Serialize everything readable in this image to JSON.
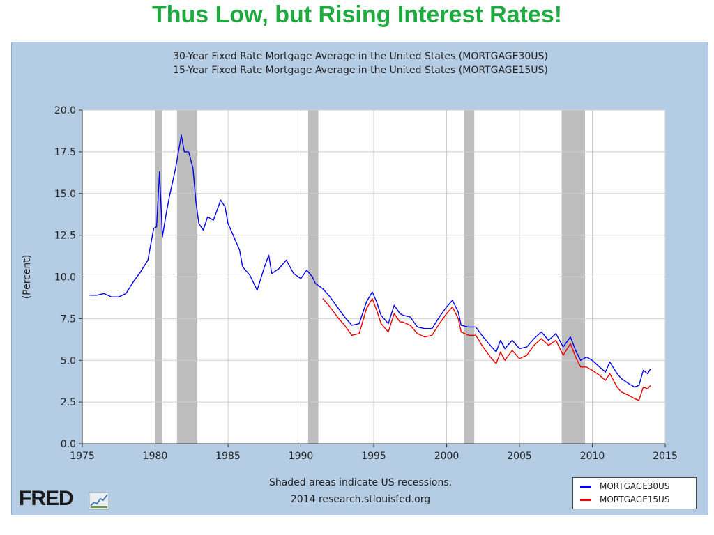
{
  "slide_title": "Thus Low, but Rising Interest Rates!",
  "chart_data": {
    "type": "line",
    "title_lines": [
      "30-Year Fixed Rate Mortgage Average in the United States (MORTGAGE30US)",
      "15-Year Fixed Rate Mortgage Average in the United States (MORTGAGE15US)"
    ],
    "ylabel": "(Percent)",
    "xlabel": "",
    "xlim": [
      1975,
      2015
    ],
    "ylim": [
      0,
      20
    ],
    "x_ticks": [
      "1975",
      "1980",
      "1985",
      "1990",
      "1995",
      "2000",
      "2005",
      "2010",
      "2015"
    ],
    "y_ticks": [
      "0.0",
      "2.5",
      "5.0",
      "7.5",
      "10.0",
      "12.5",
      "15.0",
      "17.5",
      "20.0"
    ],
    "grid": true,
    "legend_position": "bottom-right",
    "recessions": [
      [
        1980.0,
        1980.5
      ],
      [
        1981.5,
        1982.9
      ],
      [
        1990.5,
        1991.2
      ],
      [
        2001.2,
        2001.9
      ],
      [
        2007.9,
        2009.5
      ]
    ],
    "series": [
      {
        "name": "MORTGAGE30US",
        "color": "#0000ee",
        "points": [
          [
            1975.5,
            8.9
          ],
          [
            1976.0,
            8.9
          ],
          [
            1976.5,
            9.0
          ],
          [
            1977.0,
            8.8
          ],
          [
            1977.5,
            8.8
          ],
          [
            1978.0,
            9.0
          ],
          [
            1978.5,
            9.7
          ],
          [
            1979.0,
            10.3
          ],
          [
            1979.5,
            11.0
          ],
          [
            1979.9,
            12.9
          ],
          [
            1980.1,
            13.0
          ],
          [
            1980.3,
            16.3
          ],
          [
            1980.5,
            12.4
          ],
          [
            1980.8,
            14.0
          ],
          [
            1981.0,
            14.9
          ],
          [
            1981.4,
            16.5
          ],
          [
            1981.8,
            18.5
          ],
          [
            1982.0,
            17.5
          ],
          [
            1982.3,
            17.5
          ],
          [
            1982.6,
            16.5
          ],
          [
            1982.8,
            14.5
          ],
          [
            1983.0,
            13.2
          ],
          [
            1983.3,
            12.8
          ],
          [
            1983.6,
            13.6
          ],
          [
            1984.0,
            13.4
          ],
          [
            1984.5,
            14.6
          ],
          [
            1984.8,
            14.2
          ],
          [
            1985.0,
            13.2
          ],
          [
            1985.5,
            12.2
          ],
          [
            1985.8,
            11.6
          ],
          [
            1986.0,
            10.6
          ],
          [
            1986.5,
            10.1
          ],
          [
            1987.0,
            9.2
          ],
          [
            1987.5,
            10.6
          ],
          [
            1987.8,
            11.3
          ],
          [
            1988.0,
            10.2
          ],
          [
            1988.5,
            10.5
          ],
          [
            1989.0,
            11.0
          ],
          [
            1989.5,
            10.2
          ],
          [
            1990.0,
            9.9
          ],
          [
            1990.4,
            10.4
          ],
          [
            1990.8,
            10.0
          ],
          [
            1991.0,
            9.6
          ],
          [
            1991.5,
            9.3
          ],
          [
            1992.0,
            8.8
          ],
          [
            1992.5,
            8.2
          ],
          [
            1993.0,
            7.6
          ],
          [
            1993.5,
            7.1
          ],
          [
            1994.0,
            7.2
          ],
          [
            1994.5,
            8.5
          ],
          [
            1994.9,
            9.1
          ],
          [
            1995.2,
            8.5
          ],
          [
            1995.5,
            7.7
          ],
          [
            1996.0,
            7.2
          ],
          [
            1996.4,
            8.3
          ],
          [
            1996.8,
            7.8
          ],
          [
            1997.0,
            7.7
          ],
          [
            1997.5,
            7.6
          ],
          [
            1998.0,
            7.0
          ],
          [
            1998.5,
            6.9
          ],
          [
            1999.0,
            6.9
          ],
          [
            1999.5,
            7.6
          ],
          [
            2000.0,
            8.2
          ],
          [
            2000.4,
            8.6
          ],
          [
            2000.8,
            7.9
          ],
          [
            2001.0,
            7.1
          ],
          [
            2001.5,
            7.0
          ],
          [
            2002.0,
            7.0
          ],
          [
            2002.5,
            6.4
          ],
          [
            2003.0,
            5.9
          ],
          [
            2003.4,
            5.5
          ],
          [
            2003.7,
            6.2
          ],
          [
            2004.0,
            5.7
          ],
          [
            2004.5,
            6.2
          ],
          [
            2005.0,
            5.7
          ],
          [
            2005.5,
            5.8
          ],
          [
            2006.0,
            6.3
          ],
          [
            2006.5,
            6.7
          ],
          [
            2007.0,
            6.2
          ],
          [
            2007.5,
            6.6
          ],
          [
            2008.0,
            5.8
          ],
          [
            2008.5,
            6.4
          ],
          [
            2008.9,
            5.5
          ],
          [
            2009.2,
            5.0
          ],
          [
            2009.6,
            5.2
          ],
          [
            2010.0,
            5.0
          ],
          [
            2010.5,
            4.6
          ],
          [
            2010.9,
            4.3
          ],
          [
            2011.2,
            4.9
          ],
          [
            2011.7,
            4.2
          ],
          [
            2012.0,
            3.9
          ],
          [
            2012.5,
            3.6
          ],
          [
            2012.9,
            3.4
          ],
          [
            2013.2,
            3.5
          ],
          [
            2013.5,
            4.4
          ],
          [
            2013.8,
            4.2
          ],
          [
            2014.0,
            4.5
          ]
        ]
      },
      {
        "name": "MORTGAGE15US",
        "color": "#ee0000",
        "points": [
          [
            1991.5,
            8.7
          ],
          [
            1992.0,
            8.2
          ],
          [
            1992.5,
            7.6
          ],
          [
            1993.0,
            7.1
          ],
          [
            1993.5,
            6.5
          ],
          [
            1994.0,
            6.6
          ],
          [
            1994.5,
            8.1
          ],
          [
            1994.9,
            8.7
          ],
          [
            1995.2,
            8.0
          ],
          [
            1995.5,
            7.2
          ],
          [
            1996.0,
            6.7
          ],
          [
            1996.4,
            7.8
          ],
          [
            1996.8,
            7.3
          ],
          [
            1997.0,
            7.3
          ],
          [
            1997.5,
            7.1
          ],
          [
            1998.0,
            6.6
          ],
          [
            1998.5,
            6.4
          ],
          [
            1999.0,
            6.5
          ],
          [
            1999.5,
            7.2
          ],
          [
            2000.0,
            7.8
          ],
          [
            2000.4,
            8.2
          ],
          [
            2000.8,
            7.5
          ],
          [
            2001.0,
            6.7
          ],
          [
            2001.5,
            6.5
          ],
          [
            2002.0,
            6.5
          ],
          [
            2002.5,
            5.8
          ],
          [
            2003.0,
            5.2
          ],
          [
            2003.4,
            4.8
          ],
          [
            2003.7,
            5.5
          ],
          [
            2004.0,
            5.0
          ],
          [
            2004.5,
            5.6
          ],
          [
            2005.0,
            5.1
          ],
          [
            2005.5,
            5.3
          ],
          [
            2006.0,
            5.9
          ],
          [
            2006.5,
            6.3
          ],
          [
            2007.0,
            5.9
          ],
          [
            2007.5,
            6.2
          ],
          [
            2008.0,
            5.3
          ],
          [
            2008.5,
            6.0
          ],
          [
            2008.9,
            5.1
          ],
          [
            2009.2,
            4.6
          ],
          [
            2009.6,
            4.6
          ],
          [
            2010.0,
            4.4
          ],
          [
            2010.5,
            4.1
          ],
          [
            2010.9,
            3.8
          ],
          [
            2011.2,
            4.2
          ],
          [
            2011.7,
            3.4
          ],
          [
            2012.0,
            3.1
          ],
          [
            2012.5,
            2.9
          ],
          [
            2012.9,
            2.7
          ],
          [
            2013.2,
            2.6
          ],
          [
            2013.5,
            3.4
          ],
          [
            2013.8,
            3.3
          ],
          [
            2014.0,
            3.5
          ]
        ]
      }
    ],
    "footer_lines": [
      "Shaded areas indicate US recessions.",
      "2014 research.stlouisfed.org"
    ],
    "logo_text": "FRED"
  }
}
